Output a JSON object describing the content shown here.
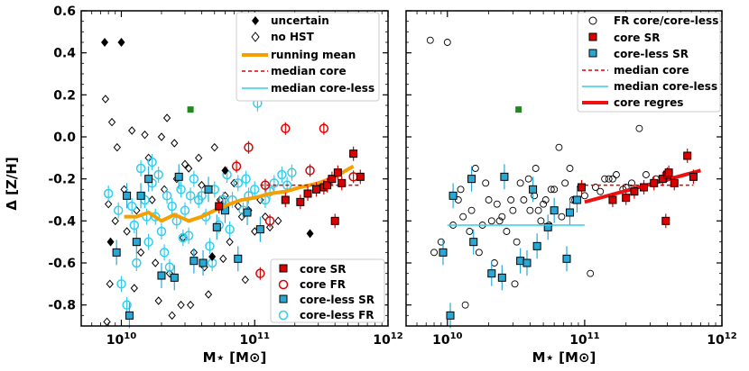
{
  "chart_data": [
    {
      "type": "scatter",
      "panel": "left",
      "xscale": "log",
      "xlim": [
        5000000000.0,
        1000000000000.0
      ],
      "ylim": [
        -0.9,
        0.6
      ],
      "xlabel": "M⋆ [M⊙]",
      "ylabel": "Δ [Z/H]",
      "x_ticks": [
        {
          "value": 10000000000.0,
          "base": "10",
          "exp": "10"
        },
        {
          "value": 100000000000.0,
          "base": "10",
          "exp": "11"
        },
        {
          "value": 1000000000000.0,
          "base": "10",
          "exp": "12"
        }
      ],
      "y_ticks": [
        "-0.8",
        "-0.6",
        "-0.4",
        "-0.2",
        "0.0",
        "0.2",
        "0.4",
        "0.6"
      ],
      "legend_top": [
        {
          "label": "uncertain",
          "marker": "diamond-filled"
        },
        {
          "label": "no HST",
          "marker": "diamond-open"
        },
        {
          "label": "running mean",
          "marker": "line-orange"
        },
        {
          "label": "median core",
          "marker": "line-dashed-red"
        },
        {
          "label": "median core-less",
          "marker": "line-cyan"
        }
      ],
      "legend_bottom": [
        {
          "label": "core SR",
          "marker": "square-red"
        },
        {
          "label": "core FR",
          "marker": "circle-red-open"
        },
        {
          "label": "core-less SR",
          "marker": "square-blue"
        },
        {
          "label": "core-less FR",
          "marker": "circle-cyan-open"
        }
      ],
      "series": [
        {
          "name": "uncertain",
          "x": [
            7500000000.0,
            10000000000.0,
            60000000000.0,
            48000000000.0,
            260000000000.0,
            8300000000.0
          ],
          "y": [
            0.45,
            0.45,
            -0.16,
            -0.57,
            -0.46,
            -0.5
          ]
        },
        {
          "name": "no HST",
          "x": [
            7600000000.0,
            8500000000.0,
            9300000000.0,
            12000000000.0,
            15000000000.0,
            20000000000.0,
            25000000000.0,
            30000000000.0,
            40000000000.0,
            55000000000.0,
            70000000000.0,
            90000000000.0,
            120000000000.0,
            150000000000.0,
            8000000000.0,
            11000000000.0,
            14000000000.0,
            18000000000.0,
            23000000000.0,
            28000000000.0,
            35000000000.0,
            45000000000.0,
            65000000000.0,
            85000000000.0,
            130000000000.0,
            9000000000.0,
            13000000000.0,
            17000000000.0,
            21000000000.0,
            26000000000.0,
            32000000000.0,
            38000000000.0,
            50000000000.0,
            60000000000.0,
            75000000000.0,
            100000000000.0,
            8200000000.0,
            12500000000.0,
            19000000000.0,
            24000000000.0,
            33000000000.0,
            42000000000.0,
            58000000000.0,
            80000000000.0,
            110000000000.0,
            16000000000.0,
            29000000000.0,
            7800000000.0,
            10500000000.0,
            22000000000.0
          ],
          "y": [
            0.18,
            0.07,
            -0.05,
            0.03,
            0.01,
            0.0,
            -0.03,
            -0.13,
            -0.23,
            -0.3,
            -0.22,
            -0.35,
            -0.38,
            -0.4,
            -0.32,
            -0.45,
            -0.55,
            -0.6,
            -0.65,
            -0.8,
            -0.55,
            -0.75,
            -0.5,
            -0.68,
            -0.43,
            -0.4,
            -0.35,
            -0.3,
            -0.25,
            -0.2,
            -0.15,
            -0.1,
            -0.05,
            -0.28,
            -0.33,
            -0.45,
            -0.7,
            -0.72,
            -0.78,
            -0.85,
            -0.8,
            -0.62,
            -0.58,
            -0.38,
            -0.3,
            -0.1,
            -0.48,
            -0.88,
            -0.25,
            0.09
          ]
        },
        {
          "name": "core SR",
          "x": [
            54000000000.0,
            170000000000.0,
            220000000000.0,
            250000000000.0,
            290000000000.0,
            330000000000.0,
            350000000000.0,
            380000000000.0,
            400000000000.0,
            420000000000.0,
            450000000000.0,
            550000000000.0,
            620000000000.0
          ],
          "y": [
            -0.33,
            -0.3,
            -0.31,
            -0.27,
            -0.25,
            -0.24,
            -0.23,
            -0.2,
            -0.4,
            -0.17,
            -0.22,
            -0.08,
            -0.19
          ]
        },
        {
          "name": "core FR",
          "x": [
            170000000000.0,
            330000000000.0,
            90000000000.0,
            120000000000.0,
            260000000000.0,
            130000000000.0,
            73000000000.0,
            550000000000.0,
            110000000000.0
          ],
          "y": [
            0.04,
            0.04,
            -0.05,
            -0.23,
            -0.16,
            -0.4,
            -0.14,
            -0.19,
            -0.65
          ]
        },
        {
          "name": "core-less SR",
          "x": [
            11000000000.0,
            9200000000.0,
            11500000000.0,
            13000000000.0,
            16000000000.0,
            14000000000.0,
            20000000000.0,
            25000000000.0,
            27000000000.0,
            35000000000.0,
            41000000000.0,
            45000000000.0,
            52000000000.0,
            60000000000.0,
            75000000000.0,
            88000000000.0,
            110000000000.0
          ],
          "y": [
            -0.28,
            -0.55,
            -0.85,
            -0.5,
            -0.2,
            -0.28,
            -0.66,
            -0.67,
            -0.19,
            -0.59,
            -0.6,
            -0.25,
            -0.43,
            -0.35,
            -0.58,
            -0.36,
            -0.44
          ]
        },
        {
          "name": "core-less FR",
          "x": [
            105000000000.0,
            11000000000.0,
            12000000000.0,
            12500000000.0,
            14000000000.0,
            15000000000.0,
            16000000000.0,
            17000000000.0,
            18000000000.0,
            19000000000.0,
            20000000000.0,
            21000000000.0,
            22000000000.0,
            24000000000.0,
            26000000000.0,
            28000000000.0,
            30000000000.0,
            32000000000.0,
            35000000000.0,
            38000000000.0,
            40000000000.0,
            43000000000.0,
            46000000000.0,
            50000000000.0,
            54000000000.0,
            58000000000.0,
            62000000000.0,
            68000000000.0,
            75000000000.0,
            82000000000.0,
            90000000000.0,
            100000000000.0,
            120000000000.0,
            140000000000.0,
            160000000000.0,
            190000000000.0,
            8000000000.0,
            9500000000.0,
            13000000000.0,
            15500000000.0,
            23000000000.0,
            29000000000.0,
            33000000000.0,
            48000000000.0,
            65000000000.0,
            86000000000.0,
            130000000000.0,
            175000000000.0,
            10000000000.0,
            17000000000.0
          ],
          "y": [
            0.16,
            -0.8,
            -0.33,
            -0.42,
            -0.15,
            -0.3,
            -0.5,
            -0.22,
            -0.38,
            -0.18,
            -0.45,
            -0.55,
            -0.28,
            -0.33,
            -0.4,
            -0.25,
            -0.35,
            -0.47,
            -0.2,
            -0.3,
            -0.28,
            -0.38,
            -0.52,
            -0.25,
            -0.42,
            -0.3,
            -0.18,
            -0.3,
            -0.22,
            -0.35,
            -0.28,
            -0.25,
            -0.3,
            -0.22,
            -0.18,
            -0.17,
            -0.27,
            -0.35,
            -0.6,
            -0.38,
            -0.62,
            -0.48,
            -0.28,
            -0.6,
            -0.44,
            -0.2,
            -0.26,
            -0.23,
            -0.7,
            -0.12
          ]
        },
        {
          "name": "green",
          "x": [
            33000000000.0
          ],
          "y": [
            0.13
          ]
        }
      ],
      "lines": [
        {
          "name": "running mean",
          "x": [
            10500000000.0,
            13000000000.0,
            16000000000.0,
            20000000000.0,
            25000000000.0,
            32000000000.0,
            40000000000.0,
            50000000000.0,
            65000000000.0,
            80000000000.0,
            100000000000.0,
            130000000000.0,
            170000000000.0,
            220000000000.0,
            300000000000.0,
            400000000000.0,
            550000000000.0
          ],
          "y": [
            -0.38,
            -0.38,
            -0.36,
            -0.4,
            -0.37,
            -0.4,
            -0.38,
            -0.35,
            -0.32,
            -0.3,
            -0.29,
            -0.27,
            -0.26,
            -0.24,
            -0.22,
            -0.19,
            -0.14
          ]
        },
        {
          "name": "median core",
          "x": [
            110000000000.0,
            620000000000.0
          ],
          "y": [
            -0.23,
            -0.23
          ]
        }
      ]
    },
    {
      "type": "scatter",
      "panel": "right",
      "xscale": "log",
      "xlim": [
        5000000000.0,
        1000000000000.0
      ],
      "ylim": [
        -0.9,
        0.6
      ],
      "xlabel": "M⋆ [M⊙]",
      "x_ticks": [
        {
          "value": 10000000000.0,
          "base": "10",
          "exp": "10"
        },
        {
          "value": 100000000000.0,
          "base": "10",
          "exp": "11"
        },
        {
          "value": 1000000000000.0,
          "base": "10",
          "exp": "12"
        }
      ],
      "legend": [
        {
          "label": "FR core/core-less",
          "marker": "circle-open-black"
        },
        {
          "label": "core SR",
          "marker": "square-red"
        },
        {
          "label": "core-less SR",
          "marker": "square-blue"
        },
        {
          "label": "median core",
          "marker": "line-dashed-red"
        },
        {
          "label": "median core-less",
          "marker": "line-cyan"
        },
        {
          "label": "core regres",
          "marker": "line-red-thick"
        }
      ],
      "series": [
        {
          "name": "FR core/core-less",
          "x": [
            7500000000.0,
            10000000000.0,
            12000000000.0,
            15000000000.0,
            18000000000.0,
            21000000000.0,
            25000000000.0,
            30000000000.0,
            36000000000.0,
            43000000000.0,
            50000000000.0,
            60000000000.0,
            72000000000.0,
            85000000000.0,
            100000000000.0,
            120000000000.0,
            150000000000.0,
            190000000000.0,
            250000000000.0,
            330000000000.0,
            8000000000.0,
            9000000000.0,
            11000000000.0,
            13000000000.0,
            16000000000.0,
            19000000000.0,
            23000000000.0,
            27000000000.0,
            32000000000.0,
            39000000000.0,
            46000000000.0,
            55000000000.0,
            65000000000.0,
            78000000000.0,
            93000000000.0,
            110000000000.0,
            140000000000.0,
            170000000000.0,
            220000000000.0,
            280000000000.0,
            12500000000.0,
            14500000000.0,
            17000000000.0,
            20000000000.0,
            24000000000.0,
            29000000000.0,
            34000000000.0,
            40000000000.0,
            48000000000.0,
            57000000000.0,
            68000000000.0,
            82000000000.0,
            130000000000.0,
            160000000000.0,
            200000000000.0,
            13500000000.0,
            22000000000.0,
            31000000000.0,
            44000000000.0,
            52000000000.0
          ],
          "y": [
            0.46,
            0.45,
            -0.3,
            -0.35,
            -0.42,
            -0.4,
            -0.38,
            -0.35,
            -0.3,
            -0.28,
            -0.32,
            -0.25,
            -0.22,
            -0.3,
            -0.28,
            -0.24,
            -0.2,
            -0.25,
            0.04,
            -0.2,
            -0.55,
            -0.5,
            -0.42,
            -0.38,
            -0.15,
            -0.22,
            -0.32,
            -0.45,
            -0.5,
            -0.2,
            -0.35,
            -0.42,
            -0.05,
            -0.15,
            -0.24,
            -0.65,
            -0.2,
            -0.18,
            -0.22,
            -0.18,
            -0.25,
            -0.45,
            -0.55,
            -0.3,
            -0.4,
            -0.3,
            -0.22,
            -0.35,
            -0.4,
            -0.25,
            -0.38,
            -0.3,
            -0.26,
            -0.2,
            -0.24,
            -0.8,
            -0.6,
            -0.7,
            -0.15,
            -0.3
          ]
        },
        {
          "name": "core SR",
          "x": [
            95000000000.0,
            160000000000.0,
            200000000000.0,
            230000000000.0,
            270000000000.0,
            320000000000.0,
            370000000000.0,
            390000000000.0,
            400000000000.0,
            410000000000.0,
            450000000000.0,
            560000000000.0,
            620000000000.0
          ],
          "y": [
            -0.24,
            -0.3,
            -0.29,
            -0.26,
            -0.24,
            -0.22,
            -0.2,
            -0.4,
            -0.18,
            -0.17,
            -0.22,
            -0.09,
            -0.19
          ]
        },
        {
          "name": "core-less SR",
          "x": [
            9300000000.0,
            10500000000.0,
            11000000000.0,
            15000000000.0,
            15500000000.0,
            21000000000.0,
            25000000000.0,
            26000000000.0,
            34000000000.0,
            38000000000.0,
            42000000000.0,
            45000000000.0,
            54000000000.0,
            60000000000.0,
            74000000000.0,
            78000000000.0,
            88000000000.0
          ],
          "y": [
            -0.55,
            -0.85,
            -0.28,
            -0.2,
            -0.5,
            -0.65,
            -0.67,
            -0.19,
            -0.59,
            -0.6,
            -0.25,
            -0.52,
            -0.43,
            -0.35,
            -0.58,
            -0.36,
            -0.3
          ]
        },
        {
          "name": "green",
          "x": [
            33000000000.0
          ],
          "y": [
            0.13
          ]
        }
      ],
      "lines": [
        {
          "name": "median core",
          "x": [
            100000000000.0,
            620000000000.0
          ],
          "y": [
            -0.23,
            -0.23
          ]
        },
        {
          "name": "median core-less",
          "x": [
            10000000000.0,
            100000000000.0
          ],
          "y": [
            -0.42,
            -0.42
          ]
        },
        {
          "name": "core regres",
          "x": [
            100000000000.0,
            700000000000.0
          ],
          "y": [
            -0.31,
            -0.16
          ]
        }
      ]
    }
  ],
  "colors": {
    "orange": "#f5a000",
    "red": "#dd0000",
    "blue": "#29a8d6",
    "cyan": "#33ccee",
    "green": "#228822",
    "black": "#000000"
  }
}
